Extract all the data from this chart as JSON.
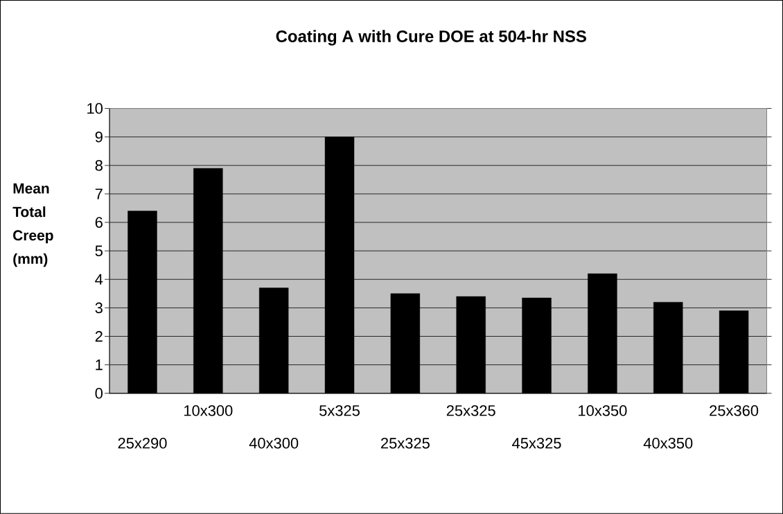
{
  "chart_data": {
    "type": "bar",
    "title": "Coating A with Cure DOE at 504-hr NSS",
    "ylabel": "Mean Total Creep (mm)",
    "categories": [
      "25x290",
      "10x300",
      "40x300",
      "5x325",
      "25x325",
      "25x325",
      "45x325",
      "10x350",
      "40x350",
      "25x360"
    ],
    "values": [
      6.4,
      7.9,
      3.7,
      9.0,
      3.5,
      3.4,
      3.35,
      4.2,
      3.2,
      2.9
    ],
    "color": "#000000",
    "ylim": [
      0,
      10
    ],
    "yticks": [
      0,
      1,
      2,
      3,
      4,
      5,
      6,
      7,
      8,
      9,
      10
    ],
    "grid": "y"
  }
}
